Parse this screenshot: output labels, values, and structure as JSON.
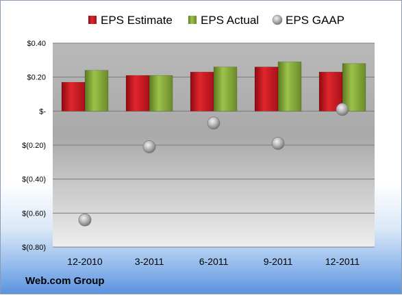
{
  "company": "Web.com Group",
  "legend": [
    {
      "label": "EPS Estimate",
      "icon": "red-square-icon",
      "color": "#c8141c"
    },
    {
      "label": "EPS Actual",
      "icon": "green-square-icon",
      "color": "#8aac3c"
    },
    {
      "label": "EPS GAAP",
      "icon": "gray-circle-icon",
      "color": "#a0a0a0"
    }
  ],
  "chart_data": {
    "type": "bar",
    "categories": [
      "12-2010",
      "3-2011",
      "6-2011",
      "9-2011",
      "12-2011"
    ],
    "series": [
      {
        "name": "EPS Estimate",
        "kind": "bar",
        "color": "#c8141c",
        "values": [
          0.17,
          0.21,
          0.23,
          0.26,
          0.23
        ]
      },
      {
        "name": "EPS Actual",
        "kind": "bar",
        "color": "#8aac3c",
        "values": [
          0.24,
          0.21,
          0.26,
          0.29,
          0.28
        ]
      },
      {
        "name": "EPS GAAP",
        "kind": "scatter",
        "color": "#a0a0a0",
        "values": [
          -0.64,
          -0.21,
          -0.07,
          -0.19,
          0.01
        ]
      }
    ],
    "yticks": [
      0.4,
      0.2,
      0.0,
      -0.2,
      -0.4,
      -0.6,
      -0.8
    ],
    "ytick_labels": [
      "$0.40",
      "$0.20",
      "$-",
      "$(0.20)",
      "$(0.40)",
      "$(0.60)",
      "$(0.80)"
    ],
    "ylim": [
      -0.8,
      0.4
    ],
    "grid": true,
    "legend_position": "top"
  }
}
